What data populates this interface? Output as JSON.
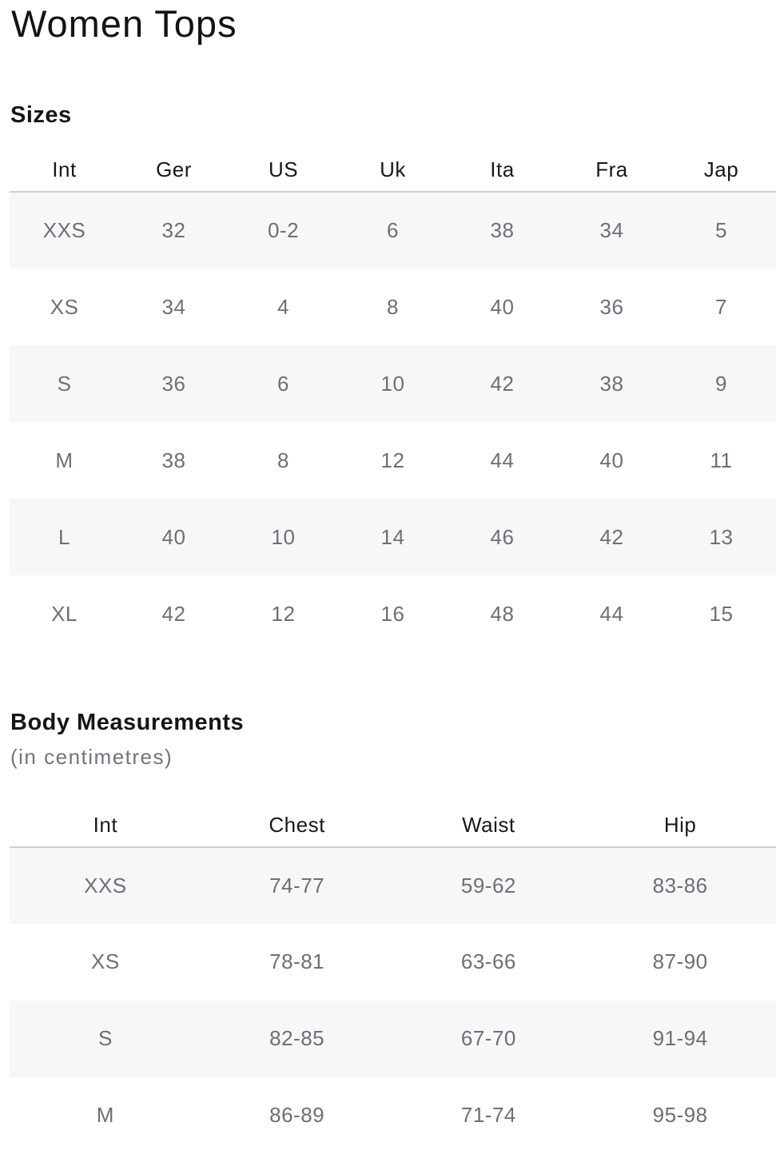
{
  "page": {
    "title": "Women Tops"
  },
  "sizes_section": {
    "heading": "Sizes",
    "table": {
      "columns": [
        "Int",
        "Ger",
        "US",
        "Uk",
        "Ita",
        "Fra",
        "Jap"
      ],
      "rows": [
        [
          "XXS",
          "32",
          "0-2",
          "6",
          "38",
          "34",
          "5"
        ],
        [
          "XS",
          "34",
          "4",
          "8",
          "40",
          "36",
          "7"
        ],
        [
          "S",
          "36",
          "6",
          "10",
          "42",
          "38",
          "9"
        ],
        [
          "M",
          "38",
          "8",
          "12",
          "44",
          "40",
          "11"
        ],
        [
          "L",
          "40",
          "10",
          "14",
          "46",
          "42",
          "13"
        ],
        [
          "XL",
          "42",
          "12",
          "16",
          "48",
          "44",
          "15"
        ]
      ]
    }
  },
  "measurements_section": {
    "heading": "Body Measurements",
    "subheading": "(in centimetres)",
    "table": {
      "columns": [
        "Int",
        "Chest",
        "Waist",
        "Hip"
      ],
      "rows": [
        [
          "XXS",
          "74-77",
          "59-62",
          "83-86"
        ],
        [
          "XS",
          "78-81",
          "63-66",
          "87-90"
        ],
        [
          "S",
          "82-85",
          "67-70",
          "91-94"
        ],
        [
          "M",
          "86-89",
          "71-74",
          "95-98"
        ]
      ]
    }
  },
  "colors": {
    "heading_text": "#161616",
    "data_text": "#6e6e78",
    "row_alt_background": "#f7f7f8",
    "divider": "#cfcfd4",
    "page_background": "#ffffff"
  }
}
